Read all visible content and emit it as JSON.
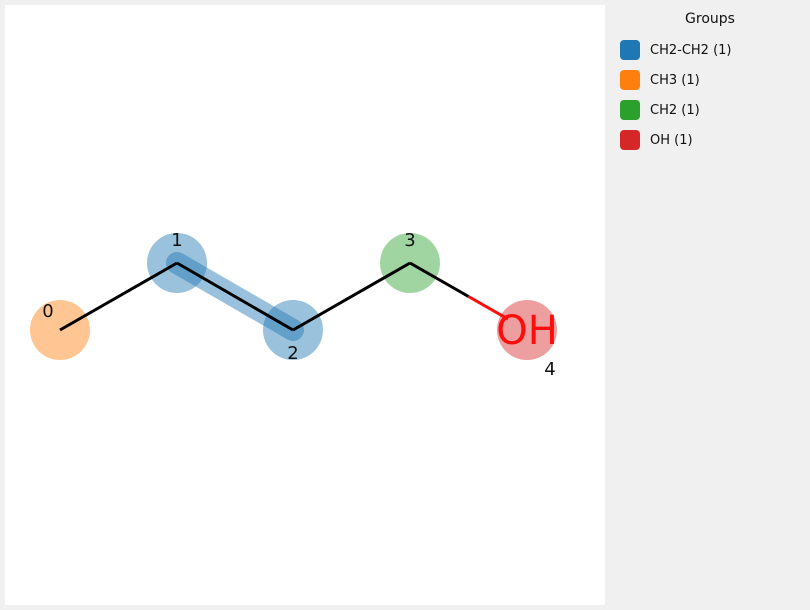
{
  "legend": {
    "title": "Groups",
    "items": [
      {
        "key": "CH2-CH2",
        "label": "CH2-CH2 (1)",
        "color": "#1f77b4"
      },
      {
        "key": "CH3",
        "label": "CH3 (1)",
        "color": "#ff7f0e"
      },
      {
        "key": "CH2",
        "label": "CH2 (1)",
        "color": "#2ca02c"
      },
      {
        "key": "OH",
        "label": "OH (1)",
        "color": "#d62728"
      }
    ]
  },
  "molecule": {
    "atoms": [
      {
        "index_label": "0",
        "element": "C",
        "symbol": "",
        "group": "CH3"
      },
      {
        "index_label": "1",
        "element": "C",
        "symbol": "",
        "group": "CH2-CH2"
      },
      {
        "index_label": "2",
        "element": "C",
        "symbol": "",
        "group": "CH2-CH2"
      },
      {
        "index_label": "3",
        "element": "C",
        "symbol": "",
        "group": "CH2"
      },
      {
        "index_label": "4",
        "element": "O",
        "symbol": "OH",
        "group": "OH"
      }
    ],
    "bonds": [
      {
        "from": 0,
        "to": 1
      },
      {
        "from": 1,
        "to": 2
      },
      {
        "from": 2,
        "to": 3
      },
      {
        "from": 3,
        "to": 4
      }
    ],
    "highlighted_bonds": [
      {
        "from": 1,
        "to": 2,
        "group": "CH2-CH2"
      }
    ],
    "colors": {
      "bond": "#000000",
      "heteroatom_O": "#ff0d0d"
    }
  }
}
